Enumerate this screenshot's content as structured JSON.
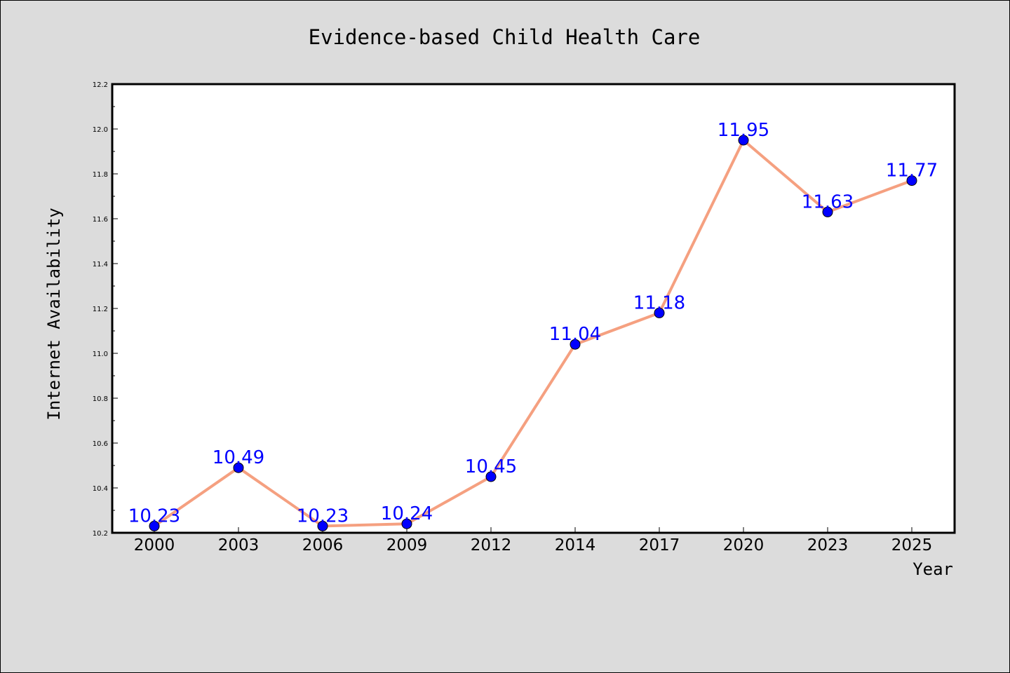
{
  "chart_data": {
    "type": "line",
    "title": "Evidence-based Child Health Care",
    "xlabel": "Year",
    "ylabel": "Internet Availability",
    "categories": [
      "2000",
      "2003",
      "2006",
      "2009",
      "2012",
      "2014",
      "2017",
      "2020",
      "2023",
      "2025"
    ],
    "series": [
      {
        "values": [
          10.23,
          10.49,
          10.23,
          10.24,
          10.45,
          11.04,
          11.18,
          11.95,
          11.63,
          11.77
        ],
        "data_labels": [
          "10.23",
          "10.49",
          "10.23",
          "10.24",
          "10.45",
          "11.04",
          "11.18",
          "11.95",
          "11.63",
          "11.77"
        ],
        "line_color": "#f5a080",
        "marker_color": "#0000ff"
      }
    ],
    "ylim": [
      10.2,
      12.2
    ],
    "yticks": [
      "10.2",
      "10.4",
      "10.6",
      "10.8",
      "11.0",
      "11.2",
      "11.4",
      "11.6",
      "11.8",
      "12.0",
      "12.2"
    ],
    "grid": false,
    "legend": "none",
    "colors": {
      "background": "#dcdcdc",
      "plot_background": "#ffffff",
      "label_color": "#0000ff"
    }
  }
}
